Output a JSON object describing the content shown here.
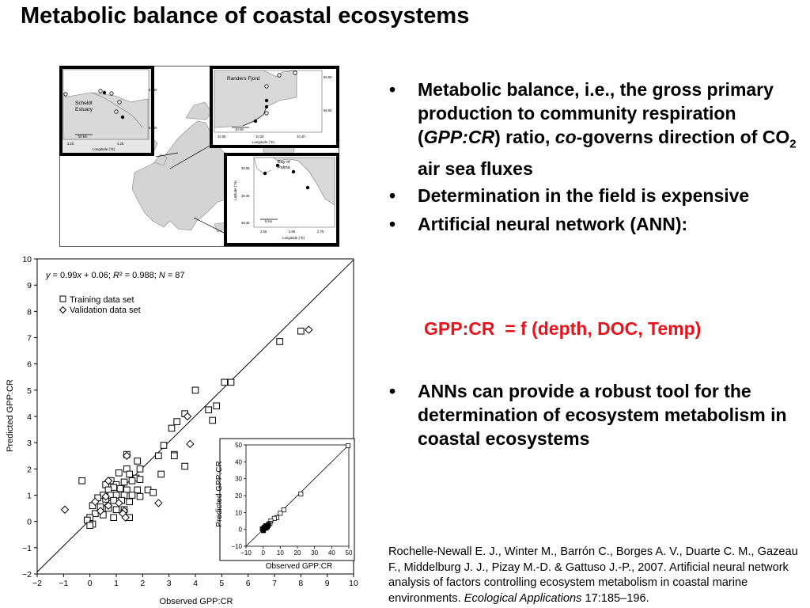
{
  "slide": {
    "title": "Metabolic balance of coastal ecosystems"
  },
  "bullets": {
    "b1_part1": "Metabolic balance, i.e., the gross primary production to community respiration (",
    "b1_gpp": "GPP:CR",
    "b1_part2": ") ratio, ",
    "b1_co": "co",
    "b1_part3": "-governs direction of CO",
    "b1_sub": "2",
    "b1_part4": " air sea fluxes",
    "b2": "Determination in the field is expensive",
    "b3": "Artificial neural network (ANN):",
    "formula": "GPP:CR  = f (depth, DOC, Temp)",
    "b4": "ANNs can provide a robust tool for the determination of ecosystem metabolism in coastal ecosystems",
    "dot": "•"
  },
  "citation": {
    "text": "Rochelle-Newall E. J., Winter M., Barrón C., Borges A. V., Duarte C. M., Gazeau F., Middelburg J. J., Pizay M.-D. & Gattuso J.-P., 2007. Artificial neural network analysis of factors controlling ecosystem metabolism in coastal marine environments. ",
    "journal": "Ecological Applications",
    "pages": " 17:185–196."
  },
  "map": {
    "scheldt": {
      "label1": "Scheldt",
      "label2": "Estuary",
      "scale": "50 km",
      "xlabel": "Longitude (°E)",
      "ylabel": "Latitude (°N)",
      "xticks": [
        "3.25",
        "4.25"
      ],
      "yticks": [
        "51.50",
        "51.00"
      ]
    },
    "randers": {
      "label": "Randers Fjord",
      "scale": "10 km",
      "xlabel": "Longitude (°E)",
      "ylabel": "Latitude (°N)",
      "xticks": [
        "10.05",
        "10.20",
        "10.40"
      ],
      "yticks": [
        "56.60",
        "56.50"
      ]
    },
    "palma": {
      "label1": "Bay of",
      "label2": "Palma",
      "scale": "5 km",
      "xlabel": "Longitude (°E)",
      "ylabel": "Latitude (°N)",
      "xticks": [
        "2.55",
        "2.65",
        "2.75"
      ],
      "yticks": [
        "39.55",
        "39.45",
        "39.35"
      ]
    }
  },
  "chart_data": [
    {
      "type": "scatter",
      "title": "",
      "xlabel": "Observed GPP:CR",
      "ylabel": "Predicted GPP:CR",
      "xlim": [
        -2,
        10
      ],
      "ylim": [
        -2,
        10
      ],
      "xticks": [
        "−2",
        "−1",
        "0",
        "1",
        "2",
        "3",
        "4",
        "5",
        "6",
        "7",
        "8",
        "9",
        "10"
      ],
      "yticks": [
        "−2",
        "−1",
        "0",
        "1",
        "2",
        "3",
        "4",
        "5",
        "6",
        "7",
        "8",
        "9",
        "10"
      ],
      "annotation": {
        "eq_y": "y",
        "eq_mid": " = 0.99",
        "eq_x": "x",
        "eq_mid2": " + 0.06; ",
        "eq_R": "R",
        "eq_mid3": "² = 0.988; ",
        "eq_N": "N",
        "eq_end": " = 87"
      },
      "fit_line": {
        "slope": 0.99,
        "intercept": 0.06
      },
      "series": [
        {
          "name": "Training data set",
          "marker": "square",
          "points": [
            [
              8.0,
              7.25
            ],
            [
              7.2,
              6.85
            ],
            [
              5.35,
              5.3
            ],
            [
              5.1,
              5.3
            ],
            [
              4.0,
              5.0
            ],
            [
              4.8,
              4.4
            ],
            [
              4.5,
              4.25
            ],
            [
              4.65,
              3.85
            ],
            [
              3.6,
              4.1
            ],
            [
              3.3,
              3.8
            ],
            [
              3.1,
              3.55
            ],
            [
              2.8,
              2.9
            ],
            [
              3.2,
              2.55
            ],
            [
              3.2,
              2.5
            ],
            [
              2.6,
              2.5
            ],
            [
              3.6,
              2.1
            ],
            [
              2.7,
              1.8
            ],
            [
              1.4,
              2.55
            ],
            [
              1.8,
              2.3
            ],
            [
              1.9,
              2.0
            ],
            [
              1.4,
              2.0
            ],
            [
              1.1,
              1.85
            ],
            [
              1.5,
              1.8
            ],
            [
              1.75,
              1.65
            ],
            [
              1.9,
              1.6
            ],
            [
              1.6,
              1.55
            ],
            [
              1.3,
              1.5
            ],
            [
              0.8,
              1.55
            ],
            [
              1.0,
              1.4
            ],
            [
              0.6,
              1.4
            ],
            [
              0.9,
              1.3
            ],
            [
              1.15,
              1.25
            ],
            [
              1.4,
              1.2
            ],
            [
              1.8,
              1.2
            ],
            [
              2.2,
              1.2
            ],
            [
              2.4,
              1.1
            ],
            [
              0.7,
              1.2
            ],
            [
              0.5,
              1.0
            ],
            [
              0.8,
              1.0
            ],
            [
              1.0,
              1.0
            ],
            [
              1.3,
              1.0
            ],
            [
              1.6,
              1.0
            ],
            [
              1.9,
              0.95
            ],
            [
              0.3,
              0.9
            ],
            [
              0.6,
              0.85
            ],
            [
              0.9,
              0.8
            ],
            [
              1.2,
              0.8
            ],
            [
              1.5,
              0.75
            ],
            [
              0.1,
              0.6
            ],
            [
              0.4,
              0.55
            ],
            [
              0.7,
              0.5
            ],
            [
              1.0,
              0.45
            ],
            [
              1.3,
              0.45
            ],
            [
              0.2,
              0.3
            ],
            [
              0.5,
              0.25
            ],
            [
              0.0,
              0.15
            ],
            [
              -0.1,
              0.05
            ],
            [
              0.1,
              -0.1
            ],
            [
              0.0,
              -0.15
            ],
            [
              -0.3,
              1.55
            ],
            [
              1.5,
              0.15
            ],
            [
              0.9,
              0.15
            ]
          ]
        },
        {
          "name": "Validation data set",
          "marker": "diamond",
          "points": [
            [
              8.3,
              7.3
            ],
            [
              3.7,
              4.0
            ],
            [
              3.8,
              2.95
            ],
            [
              1.4,
              2.5
            ],
            [
              0.7,
              1.55
            ],
            [
              2.6,
              0.7
            ],
            [
              1.3,
              0.4
            ],
            [
              1.25,
              0.3
            ],
            [
              -0.95,
              0.45
            ],
            [
              0.2,
              0.75
            ],
            [
              0.7,
              0.6
            ],
            [
              0.4,
              0.4
            ],
            [
              1.35,
              0.15
            ],
            [
              0.6,
              0.95
            ],
            [
              1.1,
              0.7
            ]
          ]
        }
      ],
      "inset": {
        "type": "scatter",
        "xlabel": "Observed GPP:CR",
        "ylabel": "Predicted GPP:CR",
        "xlim": [
          -10,
          50
        ],
        "ylim": [
          -10,
          50
        ],
        "xticks": [
          "−10",
          "0",
          "10",
          "20",
          "30",
          "40",
          "50"
        ],
        "yticks": [
          "−10",
          "0",
          "10",
          "20",
          "30",
          "40",
          "50"
        ],
        "square_points": [
          [
            49.5,
            49.5
          ],
          [
            22,
            21
          ],
          [
            12,
            11.5
          ],
          [
            10,
            9.5
          ],
          [
            8,
            7
          ],
          [
            6.5,
            6.5
          ],
          [
            4.5,
            5
          ],
          [
            4,
            3.5
          ],
          [
            3,
            2.5
          ],
          [
            2,
            1.8
          ]
        ],
        "dense_points": [
          [
            0.2,
            0.2
          ],
          [
            0.8,
            0.5
          ],
          [
            1.2,
            1.5
          ],
          [
            1.8,
            0.8
          ],
          [
            0.5,
            1.2
          ],
          [
            -0.5,
            0.3
          ],
          [
            2.5,
            1.5
          ],
          [
            1.5,
            2.2
          ],
          [
            0.2,
            -0.8
          ],
          [
            2.8,
            2.2
          ],
          [
            3.2,
            3.0
          ]
        ]
      }
    }
  ],
  "colors": {
    "formula": "#e8141b",
    "axis": "#000000",
    "map_water": "#ffffff",
    "map_land": "#d9d9d9"
  }
}
